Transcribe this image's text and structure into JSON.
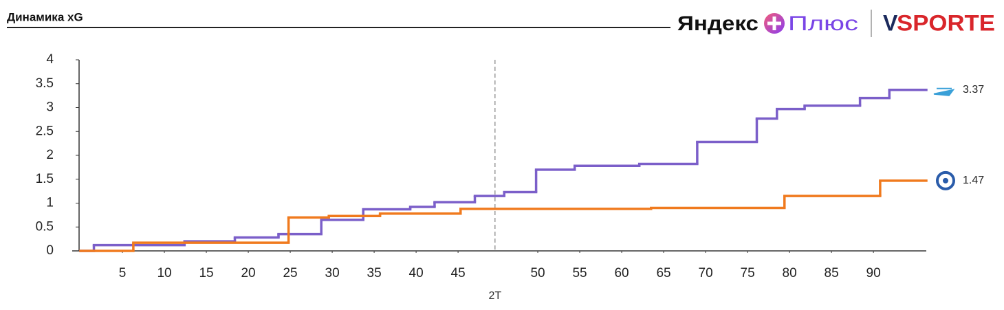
{
  "header": {
    "title": "Динамика xG"
  },
  "branding": {
    "yandex": "Яндекс",
    "plus": "Плюс",
    "v": "V",
    "sporte": "SPORTE"
  },
  "chart_data": {
    "type": "step",
    "xlim": [
      0,
      100.8
    ],
    "ylim": [
      0,
      4
    ],
    "xticks": [
      5,
      10,
      15,
      20,
      25,
      30,
      35,
      40,
      45,
      {
        "value": 54.5,
        "label": "50"
      },
      {
        "value": 59.5,
        "label": "55"
      },
      {
        "value": 64.5,
        "label": "60"
      },
      {
        "value": 69.5,
        "label": "65"
      },
      {
        "value": 74.5,
        "label": "70"
      },
      {
        "value": 79.5,
        "label": "75"
      },
      {
        "value": 84.5,
        "label": "80"
      },
      {
        "value": 89.5,
        "label": "85"
      },
      {
        "value": 94.5,
        "label": "90"
      }
    ],
    "yticks": [
      0,
      0.5,
      1,
      1.5,
      2,
      2.5,
      3,
      3.5,
      4
    ],
    "halftime": {
      "value": 49.4,
      "label": "2T"
    },
    "series": [
      {
        "color": "#7b5fc9",
        "x": [
          0,
          1.6,
          12.4,
          18.4,
          23.6,
          28.7,
          33.7,
          39.3,
          42.2,
          47,
          50.5,
          54.3,
          58.9,
          66.6,
          73.5,
          80.6,
          83,
          86.3,
          92.9,
          96.4
        ],
        "values": [
          0,
          0.12,
          0.2,
          0.28,
          0.35,
          0.65,
          0.87,
          0.92,
          1.02,
          1.15,
          1.23,
          1.7,
          1.78,
          1.82,
          2.28,
          2.77,
          2.97,
          3.04,
          3.2,
          3.37
        ]
      },
      {
        "color": "#f07a1e",
        "x": [
          0,
          6.3,
          24.8,
          29.6,
          35.7,
          45.3,
          68,
          83.9,
          95.3
        ],
        "values": [
          0,
          0.17,
          0.7,
          0.73,
          0.78,
          0.88,
          0.9,
          1.15,
          1.47
        ]
      }
    ]
  }
}
